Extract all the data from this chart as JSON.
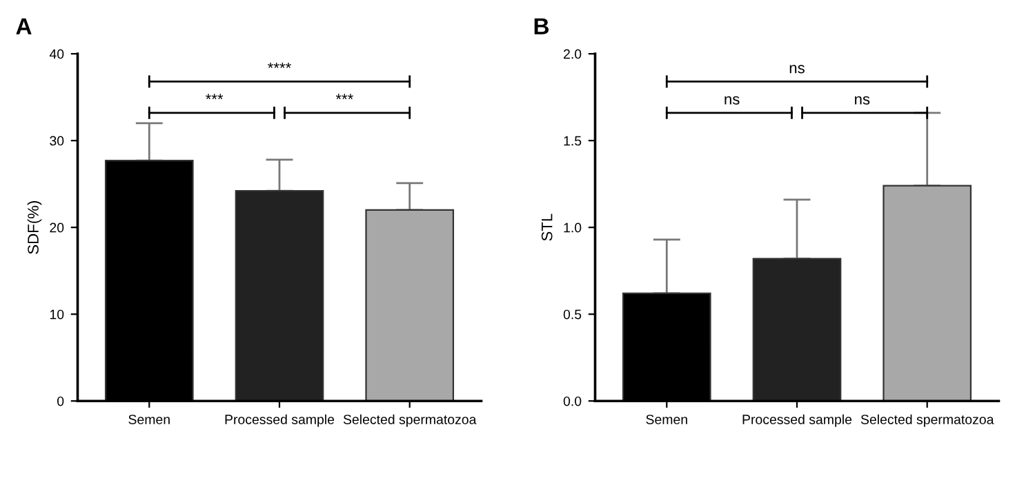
{
  "chart_data": [
    {
      "type": "bar",
      "title": "A",
      "ylabel": "SDF(%)",
      "categories": [
        "Semen",
        "Processed sample",
        "Selected spermatozoa"
      ],
      "values": [
        27.7,
        24.2,
        22.0
      ],
      "colors": [
        "#000000",
        "#222222",
        "#a8a8a8"
      ],
      "errors": [
        [
          27.7,
          32.0
        ],
        [
          24.2,
          27.8
        ],
        [
          22.0,
          25.1
        ]
      ],
      "ylim": [
        0,
        40
      ],
      "yticks": [
        0,
        10,
        20,
        30,
        40
      ],
      "grid": false,
      "annotations": [
        "****",
        "***",
        "***"
      ]
    },
    {
      "type": "bar",
      "title": "B",
      "ylabel": "STL",
      "categories": [
        "Semen",
        "Processed sample",
        "Selected spermatozoa"
      ],
      "values": [
        0.62,
        0.82,
        1.24
      ],
      "colors": [
        "#000000",
        "#222222",
        "#a8a8a8"
      ],
      "errors": [
        [
          0.62,
          0.93
        ],
        [
          0.82,
          1.16
        ],
        [
          1.24,
          1.66
        ]
      ],
      "ylim": [
        0,
        2.0
      ],
      "yticks": [
        {
          "value": 0,
          "label": "0.0"
        },
        {
          "value": 0.5,
          "label": "0.5"
        },
        {
          "value": 1.0,
          "label": "1.0"
        },
        {
          "value": 1.5,
          "label": "1.5"
        },
        {
          "value": 2.0,
          "label": "2.0"
        }
      ],
      "grid": false,
      "annotations": [
        "ns",
        "ns",
        "ns"
      ]
    }
  ]
}
